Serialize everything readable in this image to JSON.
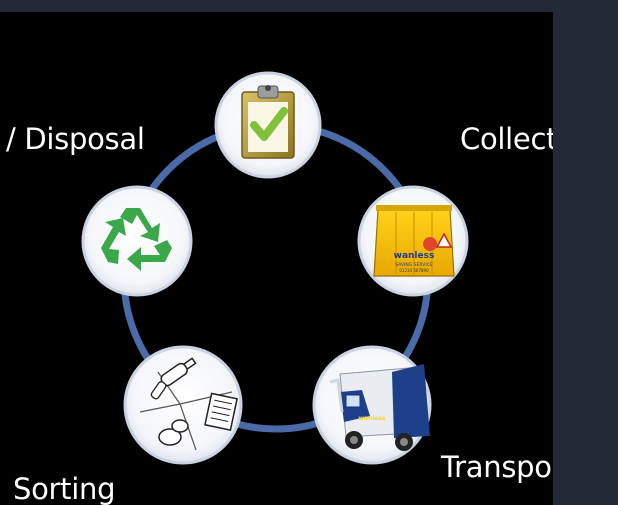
{
  "labels": {
    "disposal": "/ Disposal",
    "collection": "Collection",
    "transport": "Transport",
    "sorting": "Sorting"
  },
  "bin_branding": {
    "brand": "wanless",
    "tagline": "SAVING SERVICE",
    "subline": "01234 567890"
  },
  "truck_branding": {
    "brand": "wanless"
  },
  "nodes": [
    {
      "id": "checklist",
      "icon": "clipboard-check-icon"
    },
    {
      "id": "collection",
      "icon": "yellow-bin-icon"
    },
    {
      "id": "transport",
      "icon": "garbage-truck-icon"
    },
    {
      "id": "sorting",
      "icon": "sorting-waste-icon"
    },
    {
      "id": "disposal",
      "icon": "recycle-icon"
    }
  ],
  "colors": {
    "panel": "#000000",
    "outer": "#232a36",
    "ring": "#4a6aa8",
    "node_fill": "#ffffff",
    "node_border": "#cfd8e6",
    "recycle_green": "#3aa84a",
    "bin_yellow": "#f5c400",
    "truck_blue": "#1e3f8a",
    "check_green": "#7fc23a",
    "clipboard_gold": "#b49a3c"
  }
}
